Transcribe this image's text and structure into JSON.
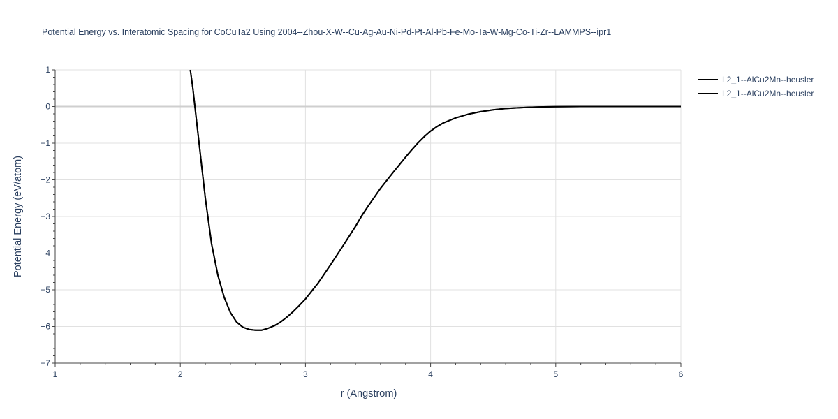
{
  "chart_data": {
    "type": "line",
    "title": "Potential Energy vs. Interatomic Spacing for CoCuTa2 Using 2004--Zhou-X-W--Cu-Ag-Au-Ni-Pd-Pt-Al-Pb-Fe-Mo-Ta-W-Mg-Co-Ti-Zr--LAMMPS--ipr1",
    "xlabel": "r (Angstrom)",
    "ylabel": "Potential Energy (eV/atom)",
    "xlim": [
      1,
      6
    ],
    "ylim": [
      -7,
      1
    ],
    "xticks": [
      1,
      2,
      3,
      4,
      5,
      6
    ],
    "yticks": [
      1,
      0,
      -1,
      -2,
      -3,
      -4,
      -5,
      -6,
      -7
    ],
    "grid": true,
    "legend_placement": "top-right",
    "series": [
      {
        "name": "L2_1--AlCu2Mn--heusler",
        "color": "#000000",
        "x": [
          2.08,
          2.1,
          2.15,
          2.2,
          2.25,
          2.3,
          2.35,
          2.4,
          2.45,
          2.5,
          2.55,
          2.6,
          2.65,
          2.7,
          2.75,
          2.8,
          2.85,
          2.9,
          2.95,
          3.0,
          3.1,
          3.2,
          3.3,
          3.4,
          3.45,
          3.5,
          3.6,
          3.7,
          3.8,
          3.85,
          3.9,
          3.95,
          4.0,
          4.05,
          4.1,
          4.2,
          4.3,
          4.4,
          4.5,
          4.6,
          4.7,
          4.8,
          4.9,
          5.0,
          5.2,
          5.4,
          5.6,
          5.8,
          6.0
        ],
        "y": [
          1.0,
          0.5,
          -1.0,
          -2.5,
          -3.75,
          -4.6,
          -5.2,
          -5.62,
          -5.88,
          -6.02,
          -6.08,
          -6.1,
          -6.1,
          -6.05,
          -5.98,
          -5.88,
          -5.75,
          -5.6,
          -5.43,
          -5.25,
          -4.82,
          -4.32,
          -3.8,
          -3.27,
          -2.98,
          -2.72,
          -2.23,
          -1.8,
          -1.38,
          -1.18,
          -0.99,
          -0.82,
          -0.67,
          -0.55,
          -0.45,
          -0.31,
          -0.21,
          -0.14,
          -0.09,
          -0.055,
          -0.035,
          -0.02,
          -0.01,
          -0.005,
          0.0,
          0.0,
          0.0,
          0.0,
          0.0
        ]
      },
      {
        "name": "L2_1--AlCu2Mn--heusler",
        "color": "#000000",
        "x": [
          2.08,
          2.1,
          2.15,
          2.2,
          2.25,
          2.3,
          2.35,
          2.4,
          2.45,
          2.5,
          2.55,
          2.6,
          2.65,
          2.7,
          2.75,
          2.8,
          2.85,
          2.9,
          2.95,
          3.0,
          3.1,
          3.2,
          3.3,
          3.4,
          3.45,
          3.5,
          3.6,
          3.7,
          3.8,
          3.85,
          3.9,
          3.95,
          4.0,
          4.05,
          4.1,
          4.2,
          4.3,
          4.4,
          4.5,
          4.6,
          4.7,
          4.8,
          4.9,
          5.0,
          5.2,
          5.4,
          5.6,
          5.8,
          6.0
        ],
        "y": [
          1.0,
          0.5,
          -1.0,
          -2.5,
          -3.75,
          -4.6,
          -5.2,
          -5.62,
          -5.88,
          -6.02,
          -6.08,
          -6.1,
          -6.1,
          -6.05,
          -5.98,
          -5.88,
          -5.75,
          -5.6,
          -5.43,
          -5.25,
          -4.82,
          -4.32,
          -3.8,
          -3.27,
          -2.98,
          -2.72,
          -2.23,
          -1.8,
          -1.38,
          -1.18,
          -0.99,
          -0.82,
          -0.67,
          -0.55,
          -0.45,
          -0.31,
          -0.21,
          -0.14,
          -0.09,
          -0.055,
          -0.035,
          -0.02,
          -0.01,
          -0.005,
          0.0,
          0.0,
          0.0,
          0.0,
          0.0
        ]
      }
    ]
  }
}
